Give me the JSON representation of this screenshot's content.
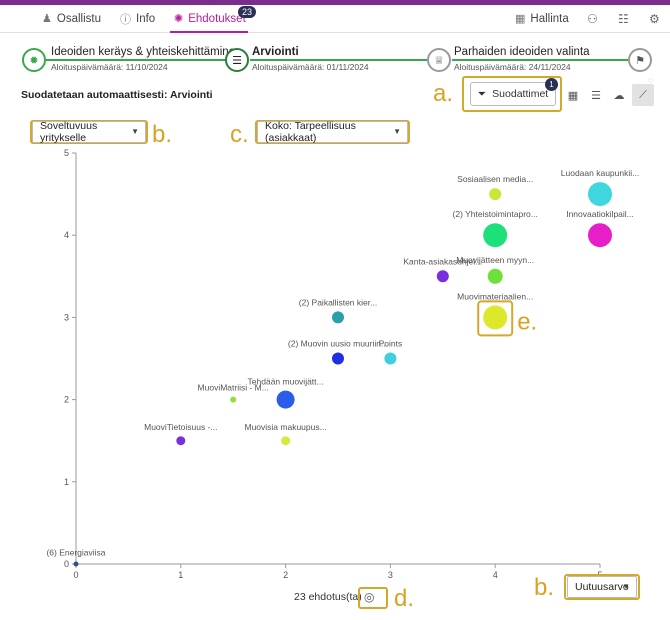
{
  "nav": {
    "tabs": [
      {
        "label": "Osallistu",
        "icon": "person-raised-hand-icon"
      },
      {
        "label": "Info",
        "icon": "info-icon"
      },
      {
        "label": "Ehdotukset",
        "icon": "lightbulb-icon",
        "badge": "23",
        "active": true
      }
    ],
    "right": {
      "label": "Hallinta",
      "icons": [
        "add-user-icon",
        "group-icon",
        "gear-icon"
      ]
    }
  },
  "phases": [
    {
      "title": "Ideoiden keräys & yhteiskehittäminen",
      "date": "Aloituspäivämäärä: 11/10/2024",
      "icon": "lightbulb-icon",
      "state": "done"
    },
    {
      "title": "Arviointi",
      "date": "Aloituspäivämäärä: 01/11/2024",
      "icon": "sliders-icon",
      "state": "active"
    },
    {
      "title": "Parhaiden ideoiden valinta",
      "date": "Aloituspäivämäärä: 24/11/2024",
      "icon": "trophy-icon",
      "state": "todo"
    },
    {
      "title": "",
      "date": "",
      "icon": "finish-flag-icon",
      "state": "todo"
    }
  ],
  "filter_heading": "Suodatetaan automaattisesti: Arviointi",
  "filter_button": {
    "label": "Suodattimet",
    "count": "1"
  },
  "view_buttons": [
    "table-view-icon",
    "list-view-icon",
    "cloud-view-icon",
    "chart-view-icon"
  ],
  "controls": {
    "y_select": "Soveltuvuus yritykselle",
    "size_select": "Koko: Tarpeellisuus (asiakkaat)",
    "x_select": "Uutuusarvo"
  },
  "annotations": [
    "a.",
    "b.",
    "c.",
    "d.",
    "e.",
    "b."
  ],
  "count_label": "23 ehdotus(ta)",
  "chart_data": {
    "type": "scatter",
    "xlim": [
      0,
      5
    ],
    "ylim": [
      0,
      5
    ],
    "xticks": [
      "0",
      "1",
      "2",
      "3",
      "4",
      "5"
    ],
    "yticks": [
      "0",
      "1",
      "2",
      "3",
      "4",
      "5"
    ],
    "grid": false,
    "points": [
      {
        "label": "Sosiaalisen media...",
        "x": 4,
        "y": 4.5,
        "size": 2,
        "color": "#c7e83a"
      },
      {
        "label": "Luodaan kaupunkii...",
        "x": 5,
        "y": 4.5,
        "size": 4,
        "color": "#3fd6e0"
      },
      {
        "label": "(2) Yhteistoimintapro...",
        "x": 4,
        "y": 4.0,
        "size": 4,
        "color": "#1ee07a"
      },
      {
        "label": "Innovaatiokilpail...",
        "x": 5,
        "y": 4.0,
        "size": 4,
        "color": "#e81ec8"
      },
      {
        "label": "Kanta-asiakasohjel...",
        "x": 3.5,
        "y": 3.5,
        "size": 2,
        "color": "#7b2ee0"
      },
      {
        "label": "Muovijätteen myyn...",
        "x": 4,
        "y": 3.5,
        "size": 2.5,
        "color": "#6fe03a"
      },
      {
        "label": "Muovimateriaalien...",
        "x": 4,
        "y": 3.0,
        "size": 4,
        "color": "#dde82a"
      },
      {
        "label": "(2) Paikallisten kier...",
        "x": 2.5,
        "y": 3.0,
        "size": 2,
        "color": "#2aa0a8"
      },
      {
        "label": "(2) Muovin uusio muuriin...",
        "x": 2.5,
        "y": 2.5,
        "size": 2,
        "color": "#2030e0"
      },
      {
        "label": "Points",
        "x": 3,
        "y": 2.5,
        "size": 2,
        "color": "#3fcfe0"
      },
      {
        "label": "MuoviMatriisi - M...",
        "x": 1.5,
        "y": 2.0,
        "size": 1,
        "color": "#8fe03a"
      },
      {
        "label": "Tehdään muovijätt...",
        "x": 2,
        "y": 2.0,
        "size": 3,
        "color": "#2b5ee8"
      },
      {
        "label": "MuoviTietoisuus -...",
        "x": 1,
        "y": 1.5,
        "size": 1.5,
        "color": "#7b2ee0"
      },
      {
        "label": "Muovisia makuupus...",
        "x": 2,
        "y": 1.5,
        "size": 1.5,
        "color": "#d8e83a"
      },
      {
        "label": "(6) Energiaviisa",
        "x": 0,
        "y": 0,
        "size": 0.4,
        "color": "#3a4a8a"
      }
    ]
  }
}
